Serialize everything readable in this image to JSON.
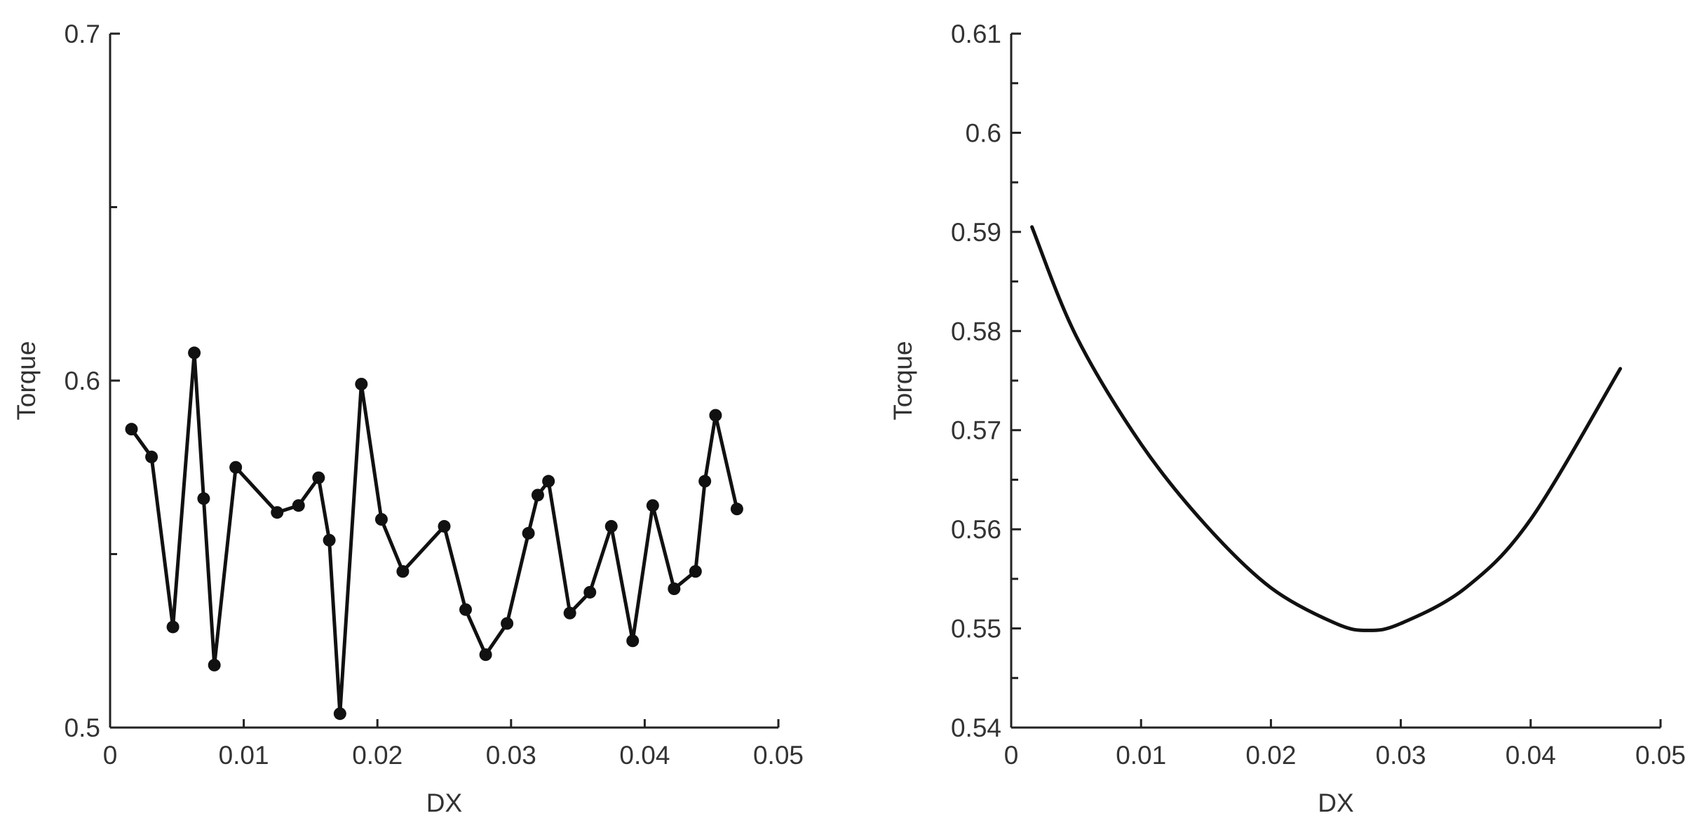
{
  "chart_data": [
    {
      "type": "line",
      "xlabel": "DX",
      "ylabel": "Torque",
      "xlim": [
        0,
        0.05
      ],
      "ylim": [
        0.5,
        0.7
      ],
      "x_ticks": [
        0,
        0.01,
        0.02,
        0.03,
        0.04,
        0.05
      ],
      "x_tick_labels": [
        "0",
        "0.01",
        "0.02",
        "0.03",
        "0.04",
        "0.05"
      ],
      "y_ticks": [
        0.5,
        0.6,
        0.7
      ],
      "y_tick_labels": [
        "0.5",
        "0.6",
        "0.7"
      ],
      "y_minor_ticks": [
        0.55,
        0.65
      ],
      "markers": true,
      "grid": false,
      "series": [
        {
          "x": [
            0.0016,
            0.0031,
            0.0047,
            0.0063,
            0.007,
            0.0078,
            0.0094,
            0.0125,
            0.0141,
            0.0156,
            0.0164,
            0.0172,
            0.0188,
            0.0203,
            0.0219,
            0.025,
            0.0266,
            0.0281,
            0.0297,
            0.0313,
            0.032,
            0.0328,
            0.0344,
            0.0359,
            0.0375,
            0.0391,
            0.0406,
            0.0422,
            0.0438,
            0.0445,
            0.0453,
            0.0469
          ],
          "y": [
            0.586,
            0.578,
            0.529,
            0.608,
            0.566,
            0.518,
            0.575,
            0.562,
            0.564,
            0.572,
            0.554,
            0.504,
            0.599,
            0.56,
            0.545,
            0.558,
            0.534,
            0.521,
            0.53,
            0.556,
            0.567,
            0.571,
            0.533,
            0.539,
            0.558,
            0.525,
            0.564,
            0.54,
            0.545,
            0.571,
            0.59,
            0.563
          ]
        }
      ]
    },
    {
      "type": "line",
      "xlabel": "DX",
      "ylabel": "Torque",
      "xlim": [
        0,
        0.05
      ],
      "ylim": [
        0.54,
        0.61
      ],
      "x_ticks": [
        0,
        0.01,
        0.02,
        0.03,
        0.04,
        0.05
      ],
      "x_tick_labels": [
        "0",
        "0.01",
        "0.02",
        "0.03",
        "0.04",
        "0.05"
      ],
      "y_ticks": [
        0.54,
        0.55,
        0.56,
        0.57,
        0.58,
        0.59,
        0.6,
        0.61
      ],
      "y_tick_labels": [
        "0.54",
        "0.55",
        "0.56",
        "0.57",
        "0.58",
        "0.59",
        "0.6",
        "0.61"
      ],
      "y_minor_ticks": [
        0.545,
        0.555,
        0.565,
        0.575,
        0.585,
        0.595,
        0.605
      ],
      "markers": false,
      "grid": false,
      "series": [
        {
          "x": [
            0.0016,
            0.005,
            0.01,
            0.015,
            0.02,
            0.025,
            0.0275,
            0.03,
            0.035,
            0.04,
            0.0469
          ],
          "y": [
            0.5905,
            0.5795,
            0.5686,
            0.5604,
            0.5541,
            0.5505,
            0.5498,
            0.5505,
            0.5541,
            0.561,
            0.5762
          ]
        }
      ]
    }
  ]
}
